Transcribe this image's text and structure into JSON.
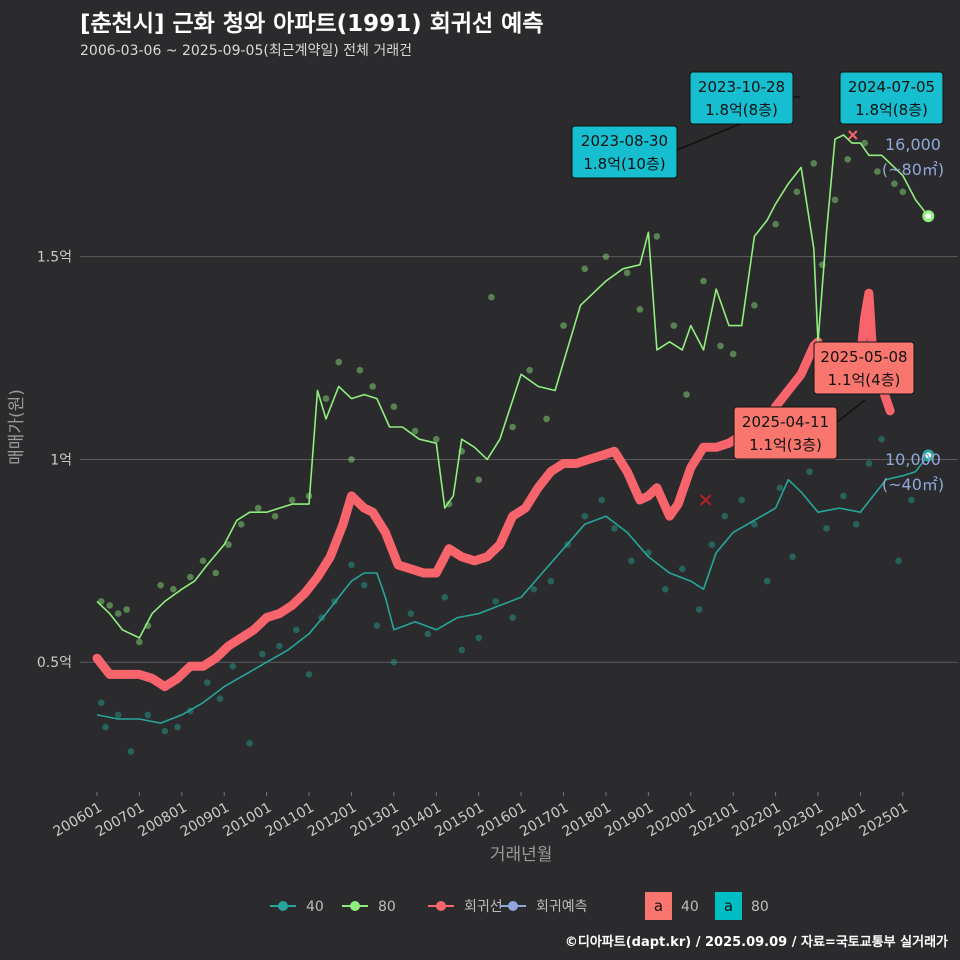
{
  "title": "[춘천시] 근화 청와 아파트(1991) 회귀선 예측",
  "subtitle": "2006-03-06 ~ 2025-09-05(최근계약일) 전체 거래건",
  "caption": "©디아파트(dapt.kr) / 2025.09.09 / 자료=국토교통부 실거래가",
  "chart_data": {
    "type": "line",
    "xlabel": "거래년월",
    "ylabel": "매매가(원)",
    "xlim": [
      2005.6,
      2026.3
    ],
    "ylim": [
      0.18,
      1.98
    ],
    "x_ticks": [
      {
        "label": "200601",
        "x": 2006.0
      },
      {
        "label": "200701",
        "x": 2007.0
      },
      {
        "label": "200801",
        "x": 2008.0
      },
      {
        "label": "200901",
        "x": 2009.0
      },
      {
        "label": "201001",
        "x": 2010.0
      },
      {
        "label": "201101",
        "x": 2011.0
      },
      {
        "label": "201201",
        "x": 2012.0
      },
      {
        "label": "201301",
        "x": 2013.0
      },
      {
        "label": "201401",
        "x": 2014.0
      },
      {
        "label": "201501",
        "x": 2015.0
      },
      {
        "label": "201601",
        "x": 2016.0
      },
      {
        "label": "201701",
        "x": 2017.0
      },
      {
        "label": "201801",
        "x": 2018.0
      },
      {
        "label": "201901",
        "x": 2019.0
      },
      {
        "label": "202001",
        "x": 2020.0
      },
      {
        "label": "202101",
        "x": 2021.0
      },
      {
        "label": "202201",
        "x": 2022.0
      },
      {
        "label": "202301",
        "x": 2023.0
      },
      {
        "label": "202401",
        "x": 2024.0
      },
      {
        "label": "202501",
        "x": 2025.0
      }
    ],
    "y_ticks": [
      {
        "label": "0.5억",
        "y": 0.5
      },
      {
        "label": "1억",
        "y": 1.0
      },
      {
        "label": "1.5억",
        "y": 1.5
      }
    ],
    "legend": [
      {
        "label": "40",
        "color": "#26a69a",
        "kind": "line"
      },
      {
        "label": "80",
        "color": "#90ee7f",
        "kind": "line"
      },
      {
        "label": "회귀선",
        "color": "#f8646b",
        "kind": "line"
      },
      {
        "label": "회귀예측",
        "color": "#8fa8d9",
        "kind": "line"
      },
      {
        "label": "40",
        "color": "#f8766d",
        "kind": "box"
      },
      {
        "label": "80",
        "color": "#00bfc4",
        "kind": "box"
      }
    ],
    "series": [
      {
        "name": "40",
        "color": "#26a69a",
        "x": [
          2006.0,
          2006.5,
          2007.0,
          2007.5,
          2008.0,
          2008.5,
          2009.0,
          2009.5,
          2010.0,
          2010.5,
          2011.0,
          2011.4,
          2011.7,
          2012.0,
          2012.3,
          2012.6,
          2012.8,
          2013.0,
          2013.5,
          2014.0,
          2014.5,
          2015.0,
          2015.5,
          2016.0,
          2016.5,
          2017.0,
          2017.5,
          2018.0,
          2018.5,
          2019.0,
          2019.5,
          2020.0,
          2020.3,
          2020.6,
          2021.0,
          2021.5,
          2022.0,
          2022.3,
          2022.6,
          2023.0,
          2023.5,
          2024.0,
          2024.3,
          2024.6,
          2025.0,
          2025.3,
          2025.6
        ],
        "values": [
          0.37,
          0.36,
          0.36,
          0.35,
          0.37,
          0.4,
          0.44,
          0.47,
          0.5,
          0.53,
          0.57,
          0.62,
          0.66,
          0.7,
          0.72,
          0.72,
          0.66,
          0.58,
          0.6,
          0.58,
          0.61,
          0.62,
          0.64,
          0.66,
          0.72,
          0.78,
          0.84,
          0.86,
          0.82,
          0.76,
          0.72,
          0.7,
          0.68,
          0.77,
          0.82,
          0.85,
          0.88,
          0.95,
          0.92,
          0.87,
          0.88,
          0.87,
          0.91,
          0.95,
          0.96,
          0.97,
          1.01
        ]
      },
      {
        "name": "80",
        "color": "#90ee7f",
        "x": [
          2006.0,
          2006.3,
          2006.6,
          2007.0,
          2007.3,
          2007.6,
          2008.0,
          2008.3,
          2008.6,
          2009.0,
          2009.3,
          2009.6,
          2010.0,
          2010.3,
          2010.6,
          2011.0,
          2011.2,
          2011.4,
          2011.7,
          2012.0,
          2012.3,
          2012.6,
          2012.9,
          2013.2,
          2013.6,
          2014.0,
          2014.2,
          2014.4,
          2014.6,
          2014.9,
          2015.2,
          2015.5,
          2016.0,
          2016.4,
          2016.8,
          2017.0,
          2017.4,
          2017.8,
          2018.0,
          2018.4,
          2018.8,
          2019.0,
          2019.2,
          2019.5,
          2019.8,
          2020.0,
          2020.3,
          2020.6,
          2020.9,
          2021.2,
          2021.5,
          2021.8,
          2022.0,
          2022.3,
          2022.6,
          2022.9,
          2023.0,
          2023.2,
          2023.4,
          2023.6,
          2023.8,
          2024.0,
          2024.2,
          2024.5,
          2024.8,
          2025.0,
          2025.3,
          2025.6
        ],
        "values": [
          0.65,
          0.62,
          0.58,
          0.56,
          0.62,
          0.65,
          0.68,
          0.7,
          0.74,
          0.79,
          0.85,
          0.87,
          0.87,
          0.88,
          0.89,
          0.89,
          1.17,
          1.1,
          1.18,
          1.15,
          1.16,
          1.15,
          1.08,
          1.08,
          1.05,
          1.04,
          0.88,
          0.91,
          1.05,
          1.03,
          1.0,
          1.05,
          1.21,
          1.18,
          1.17,
          1.24,
          1.38,
          1.42,
          1.44,
          1.47,
          1.48,
          1.56,
          1.27,
          1.29,
          1.27,
          1.33,
          1.27,
          1.42,
          1.33,
          1.33,
          1.55,
          1.59,
          1.63,
          1.68,
          1.72,
          1.52,
          1.29,
          1.56,
          1.79,
          1.8,
          1.78,
          1.78,
          1.75,
          1.75,
          1.72,
          1.7,
          1.64,
          1.6
        ]
      },
      {
        "name": "회귀선",
        "color": "#f8646b",
        "x": [
          2006.0,
          2006.3,
          2006.6,
          2007.0,
          2007.3,
          2007.6,
          2007.9,
          2008.2,
          2008.5,
          2008.8,
          2009.1,
          2009.4,
          2009.7,
          2010.0,
          2010.3,
          2010.6,
          2010.9,
          2011.2,
          2011.5,
          2011.8,
          2012.0,
          2012.3,
          2012.5,
          2012.8,
          2013.1,
          2013.4,
          2013.7,
          2014.0,
          2014.3,
          2014.6,
          2014.9,
          2015.2,
          2015.5,
          2015.8,
          2016.1,
          2016.4,
          2016.7,
          2017.0,
          2017.3,
          2017.6,
          2017.9,
          2018.2,
          2018.5,
          2018.8,
          2019.0,
          2019.2,
          2019.5,
          2019.7,
          2020.0,
          2020.3,
          2020.6,
          2020.9,
          2021.2,
          2021.5,
          2021.8,
          2022.0,
          2022.3,
          2022.6,
          2022.9,
          2023.0,
          2023.2,
          2023.5,
          2023.8,
          2024.0,
          2024.1,
          2024.2,
          2024.3,
          2024.5,
          2024.7
        ],
        "values": [
          0.51,
          0.47,
          0.47,
          0.47,
          0.46,
          0.44,
          0.46,
          0.49,
          0.49,
          0.51,
          0.54,
          0.56,
          0.58,
          0.61,
          0.62,
          0.64,
          0.67,
          0.71,
          0.76,
          0.84,
          0.91,
          0.88,
          0.87,
          0.82,
          0.74,
          0.73,
          0.72,
          0.72,
          0.78,
          0.76,
          0.75,
          0.76,
          0.79,
          0.86,
          0.88,
          0.93,
          0.97,
          0.99,
          0.99,
          1.0,
          1.01,
          1.02,
          0.97,
          0.9,
          0.91,
          0.93,
          0.86,
          0.89,
          0.98,
          1.03,
          1.03,
          1.04,
          1.06,
          1.08,
          1.1,
          1.13,
          1.17,
          1.21,
          1.28,
          1.29,
          1.23,
          1.28,
          1.24,
          1.25,
          1.35,
          1.41,
          1.24,
          1.18,
          1.12
        ]
      }
    ],
    "scatter_points": {
      "series_80": [
        [
          2006.1,
          0.65
        ],
        [
          2006.3,
          0.64
        ],
        [
          2006.5,
          0.62
        ],
        [
          2006.7,
          0.63
        ],
        [
          2007.0,
          0.55
        ],
        [
          2007.2,
          0.59
        ],
        [
          2007.5,
          0.69
        ],
        [
          2007.8,
          0.68
        ],
        [
          2008.2,
          0.71
        ],
        [
          2008.5,
          0.75
        ],
        [
          2008.8,
          0.72
        ],
        [
          2009.1,
          0.79
        ],
        [
          2009.4,
          0.84
        ],
        [
          2009.8,
          0.88
        ],
        [
          2010.2,
          0.86
        ],
        [
          2010.6,
          0.9
        ],
        [
          2011.0,
          0.91
        ],
        [
          2011.4,
          1.15
        ],
        [
          2011.7,
          1.24
        ],
        [
          2012.0,
          1.0
        ],
        [
          2012.2,
          1.22
        ],
        [
          2012.5,
          1.18
        ],
        [
          2013.0,
          1.13
        ],
        [
          2013.5,
          1.07
        ],
        [
          2014.0,
          1.05
        ],
        [
          2014.3,
          0.89
        ],
        [
          2014.6,
          1.02
        ],
        [
          2015.0,
          0.95
        ],
        [
          2015.3,
          1.4
        ],
        [
          2015.8,
          1.08
        ],
        [
          2016.2,
          1.22
        ],
        [
          2016.6,
          1.1
        ],
        [
          2017.0,
          1.33
        ],
        [
          2017.5,
          1.47
        ],
        [
          2018.0,
          1.5
        ],
        [
          2018.5,
          1.46
        ],
        [
          2018.8,
          1.37
        ],
        [
          2019.2,
          1.55
        ],
        [
          2019.6,
          1.33
        ],
        [
          2019.9,
          1.16
        ],
        [
          2020.3,
          1.44
        ],
        [
          2020.7,
          1.28
        ],
        [
          2021.0,
          1.26
        ],
        [
          2021.5,
          1.38
        ],
        [
          2022.0,
          1.58
        ],
        [
          2022.5,
          1.66
        ],
        [
          2022.9,
          1.73
        ],
        [
          2023.1,
          1.48
        ],
        [
          2023.4,
          1.64
        ],
        [
          2023.7,
          1.74
        ],
        [
          2024.1,
          1.78
        ],
        [
          2024.4,
          1.71
        ],
        [
          2024.8,
          1.68
        ],
        [
          2025.0,
          1.66
        ]
      ],
      "series_40": [
        [
          2006.1,
          0.4
        ],
        [
          2006.2,
          0.34
        ],
        [
          2006.5,
          0.37
        ],
        [
          2006.8,
          0.28
        ],
        [
          2007.2,
          0.37
        ],
        [
          2007.6,
          0.33
        ],
        [
          2007.9,
          0.34
        ],
        [
          2008.2,
          0.38
        ],
        [
          2008.6,
          0.45
        ],
        [
          2008.9,
          0.41
        ],
        [
          2009.2,
          0.49
        ],
        [
          2009.6,
          0.3
        ],
        [
          2009.9,
          0.52
        ],
        [
          2010.3,
          0.54
        ],
        [
          2010.7,
          0.58
        ],
        [
          2011.0,
          0.47
        ],
        [
          2011.3,
          0.61
        ],
        [
          2011.6,
          0.65
        ],
        [
          2012.0,
          0.74
        ],
        [
          2012.3,
          0.69
        ],
        [
          2012.6,
          0.59
        ],
        [
          2013.0,
          0.5
        ],
        [
          2013.4,
          0.62
        ],
        [
          2013.8,
          0.57
        ],
        [
          2014.2,
          0.66
        ],
        [
          2014.6,
          0.53
        ],
        [
          2015.0,
          0.56
        ],
        [
          2015.4,
          0.65
        ],
        [
          2015.8,
          0.61
        ],
        [
          2016.3,
          0.68
        ],
        [
          2016.7,
          0.7
        ],
        [
          2017.1,
          0.79
        ],
        [
          2017.5,
          0.86
        ],
        [
          2017.9,
          0.9
        ],
        [
          2018.2,
          0.83
        ],
        [
          2018.6,
          0.75
        ],
        [
          2019.0,
          0.77
        ],
        [
          2019.4,
          0.68
        ],
        [
          2019.8,
          0.73
        ],
        [
          2020.2,
          0.63
        ],
        [
          2020.5,
          0.79
        ],
        [
          2020.8,
          0.86
        ],
        [
          2021.2,
          0.9
        ],
        [
          2021.5,
          0.84
        ],
        [
          2021.8,
          0.7
        ],
        [
          2022.1,
          0.93
        ],
        [
          2022.4,
          0.76
        ],
        [
          2022.8,
          0.97
        ],
        [
          2023.2,
          0.83
        ],
        [
          2023.6,
          0.91
        ],
        [
          2023.9,
          0.84
        ],
        [
          2024.2,
          0.99
        ],
        [
          2024.5,
          1.05
        ],
        [
          2024.9,
          0.75
        ],
        [
          2025.2,
          0.9
        ]
      ]
    },
    "annotations": [
      {
        "date": "2023-10-28",
        "price": "1.8억(8층)",
        "fill": "#17becf",
        "x": 2023.82,
        "y": 1.8
      },
      {
        "date": "2024-07-05",
        "price": "1.8억(8층)",
        "fill": "#17becf",
        "x": 2024.51,
        "y": 1.8
      },
      {
        "date": "2023-08-30",
        "price": "1.8억(10층)",
        "fill": "#17becf",
        "x": 2023.66,
        "y": 1.8
      },
      {
        "date": "2025-05-08",
        "price": "1.1억(4층)",
        "fill": "#f8766d",
        "x": 2025.35,
        "y": 1.11
      },
      {
        "date": "2025-04-11",
        "price": "1.1억(3층)",
        "fill": "#f8766d",
        "x": 2025.28,
        "y": 1.1
      }
    ],
    "end_labels": [
      {
        "line1": "16,000",
        "line2": "(~80㎡)",
        "y": 1.6
      },
      {
        "line1": "10,000",
        "line2": "(~40㎡)",
        "y": 1.0
      }
    ]
  }
}
